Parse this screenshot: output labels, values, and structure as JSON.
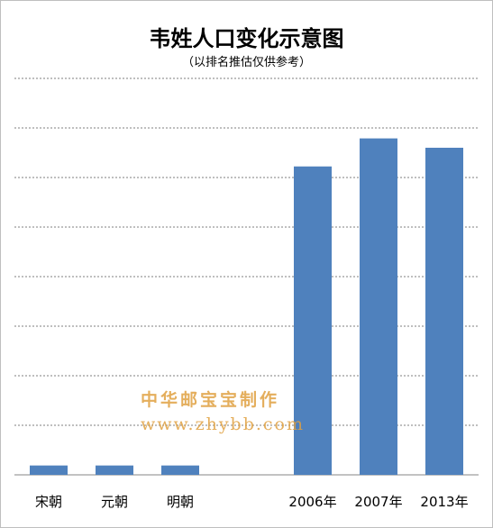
{
  "chart_data": {
    "type": "bar",
    "title": "韦姓人口变化示意图",
    "subtitle": "（以排名推估仅供参考）",
    "categories": [
      "宋朝",
      "元朝",
      "明朝",
      "2006年",
      "2007年",
      "2013年"
    ],
    "values": [
      0.2,
      0.2,
      0.2,
      6.6,
      7.2,
      7.0
    ],
    "ylim": [
      0,
      8.6
    ],
    "grid": true,
    "bar_color": "#4f81bd",
    "grid_color": "#7f7f7f"
  },
  "watermark": {
    "line1": "中华邮宝宝制作",
    "line2": "www.zhybb.com"
  }
}
